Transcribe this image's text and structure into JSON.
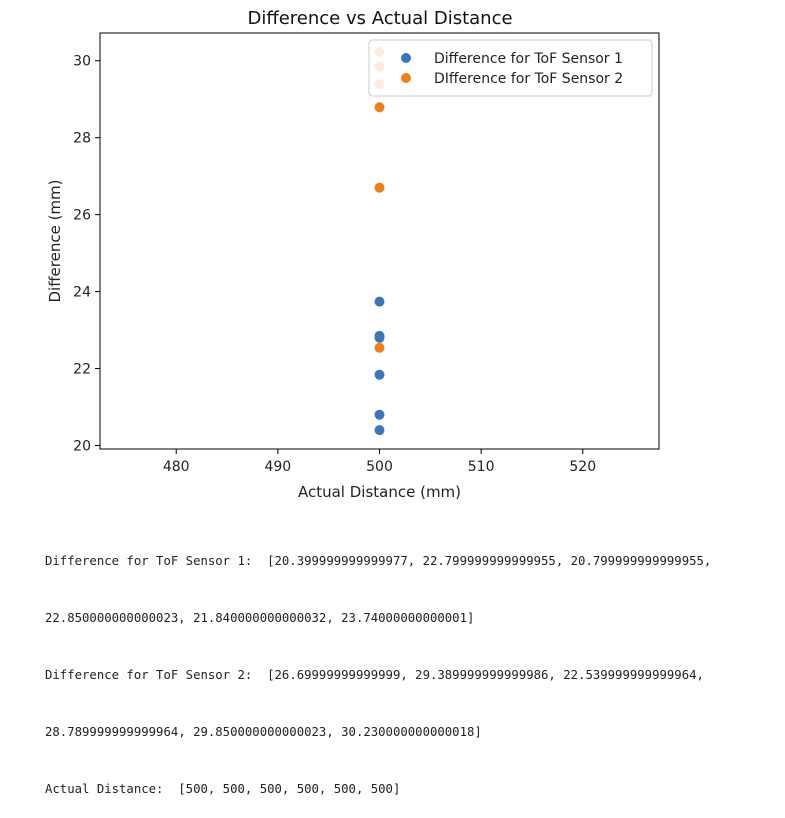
{
  "chart_data": {
    "type": "scatter",
    "title": "Difference vs Actual Distance",
    "xlabel": "Actual Distance (mm)",
    "ylabel": "Difference (mm)",
    "xlim": [
      472.5,
      527.5
    ],
    "ylim": [
      19.91,
      30.72
    ],
    "x_ticks": [
      480,
      490,
      500,
      510,
      520
    ],
    "y_ticks": [
      20,
      22,
      24,
      26,
      28,
      30
    ],
    "grid": false,
    "legend_position": "top-right",
    "series": [
      {
        "name": "Difference for ToF Sensor 1",
        "color": "#3a76b8",
        "x": [
          500,
          500,
          500,
          500,
          500,
          500
        ],
        "y": [
          20.4,
          22.8,
          20.8,
          22.85,
          21.84,
          23.74
        ]
      },
      {
        "name": "DIfference for ToF Sensor 2",
        "color": "#f07f16",
        "x": [
          500,
          500,
          500,
          500,
          500,
          500
        ],
        "y": [
          26.7,
          29.39,
          22.54,
          28.79,
          29.85,
          30.23
        ]
      }
    ]
  },
  "output": {
    "lines": [
      "Difference for ToF Sensor 1:  [20.399999999999977, 22.799999999999955, 20.799999999999955,",
      "22.850000000000023, 21.840000000000032, 23.74000000000001]",
      "Difference for ToF Sensor 2:  [26.69999999999999, 29.389999999999986, 22.539999999999964,",
      "28.789999999999964, 29.850000000000023, 30.230000000000018]",
      "Actual Distance:  [500, 500, 500, 500, 500, 500]"
    ]
  }
}
